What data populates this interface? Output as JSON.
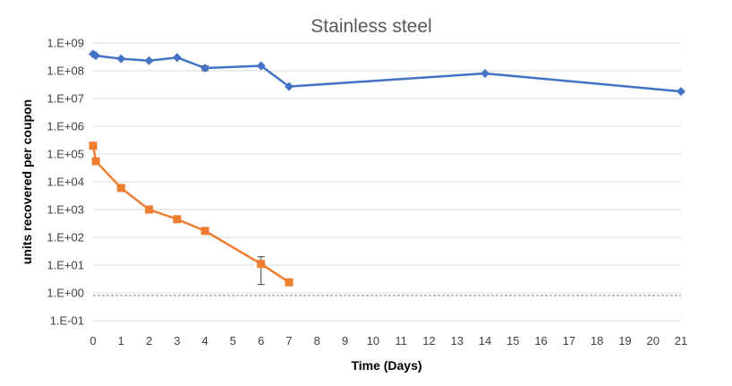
{
  "chart_data": {
    "type": "line",
    "title": "Stainless steel",
    "xlabel": "Time (Days)",
    "ylabel": "units recovered per coupon",
    "y_scale": "log",
    "ylim": [
      0.1,
      1000000000
    ],
    "x_categories": [
      "0",
      "1",
      "2",
      "3",
      "4",
      "5",
      "6",
      "7",
      "8",
      "9",
      "10",
      "11",
      "12",
      "13",
      "14",
      "15",
      "16",
      "17",
      "18",
      "19",
      "20",
      "21"
    ],
    "y_tick_labels": [
      "1.E-01",
      "1.E+00",
      "1.E+01",
      "1.E+02",
      "1.E+03",
      "1.E+04",
      "1.E+05",
      "1.E+06",
      "1.E+07",
      "1.E+08",
      "1.E+09"
    ],
    "y_tick_values": [
      0.1,
      1,
      10,
      100,
      1000,
      10000,
      100000,
      1000000,
      10000000,
      100000000,
      1000000000
    ],
    "grid": true,
    "reference_line": {
      "y": 0.8,
      "style": "dashed",
      "color": "#7f7f7f"
    },
    "series": [
      {
        "color": "#4472c4",
        "marker": "diamond",
        "x": [
          0,
          0.1,
          1,
          2,
          3,
          4,
          6,
          7,
          14,
          21
        ],
        "y": [
          400000000,
          350000000,
          270000000,
          230000000,
          300000000,
          125000000,
          150000000,
          27000000,
          80000000,
          18000000
        ],
        "error": [
          0,
          0,
          0,
          0,
          0,
          25000000,
          0,
          0,
          0,
          0
        ]
      },
      {
        "color": "#ed7d31",
        "marker": "square",
        "x": [
          0,
          0.1,
          1,
          2,
          3,
          4,
          6,
          7
        ],
        "y": [
          200000,
          55000,
          6000,
          1000,
          450,
          170,
          11,
          2.4
        ],
        "error": [
          0,
          0,
          0,
          0,
          0,
          0,
          9,
          0
        ]
      }
    ]
  }
}
